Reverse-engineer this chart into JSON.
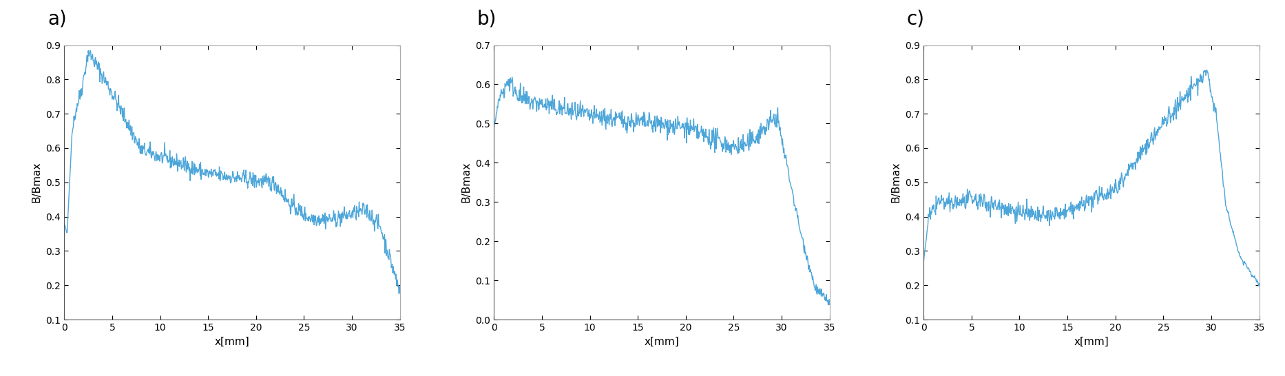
{
  "line_color": "#4DA6D9",
  "line_width": 1.0,
  "background_color": "#ffffff",
  "panel_labels": [
    "a)",
    "b)",
    "c)"
  ],
  "xlabel": "x[mm]",
  "ylabel": "B/Bmax",
  "xlim": [
    0,
    35
  ],
  "plots": [
    {
      "ylim": [
        0.1,
        0.9
      ],
      "yticks": [
        0.1,
        0.2,
        0.3,
        0.4,
        0.5,
        0.6,
        0.7,
        0.8,
        0.9
      ],
      "xticks": [
        0,
        5,
        10,
        15,
        20,
        25,
        30,
        35
      ]
    },
    {
      "ylim": [
        0,
        0.7
      ],
      "yticks": [
        0,
        0.1,
        0.2,
        0.3,
        0.4,
        0.5,
        0.6,
        0.7
      ],
      "xticks": [
        0,
        5,
        10,
        15,
        20,
        25,
        30,
        35
      ]
    },
    {
      "ylim": [
        0.1,
        0.9
      ],
      "yticks": [
        0.1,
        0.2,
        0.3,
        0.4,
        0.5,
        0.6,
        0.7,
        0.8,
        0.9
      ],
      "xticks": [
        0,
        5,
        10,
        15,
        20,
        25,
        30,
        35
      ]
    }
  ],
  "n_points": 700,
  "seed": 42,
  "figsize": [
    18.66,
    5.46
  ],
  "dpi": 100
}
